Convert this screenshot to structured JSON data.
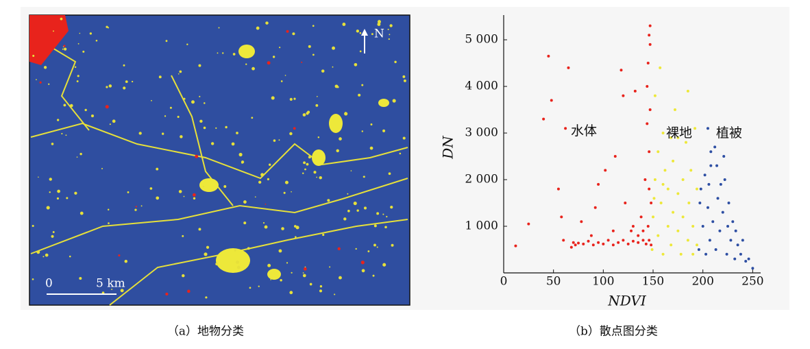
{
  "map": {
    "north": "N",
    "scale_start": "0",
    "scale_end": "5 km"
  },
  "captions": [
    "（a）地物分类",
    "（b）散点图分类"
  ],
  "chart_data": {
    "type": "scatter",
    "x_label": "NDVI",
    "y_label": "DN",
    "xlim": [
      0,
      258
    ],
    "ylim": [
      0,
      5530
    ],
    "xticks": [
      0,
      50,
      100,
      150,
      200,
      250
    ],
    "yticks": [
      {
        "value": 1000,
        "label": "1 000"
      },
      {
        "value": 2000,
        "label": "2 000"
      },
      {
        "value": 3000,
        "label": "3 000"
      },
      {
        "value": 4000,
        "label": "4 000"
      },
      {
        "value": 5000,
        "label": "5 000"
      }
    ],
    "series": [
      {
        "name": "水体",
        "color": "#e8231c",
        "x": [
          12,
          25,
          40,
          45,
          48,
          55,
          60,
          62,
          65,
          70,
          72,
          75,
          78,
          80,
          85,
          90,
          92,
          95,
          100,
          102,
          105,
          110,
          112,
          115,
          118,
          120,
          122,
          125,
          128,
          130,
          132,
          135,
          138,
          140,
          142,
          143,
          144,
          145,
          145,
          146,
          146,
          147,
          147,
          147,
          148,
          148,
          144,
          146,
          140,
          135,
          130,
          110,
          88,
          68,
          58,
          95,
          120,
          146
        ],
        "values": [
          580,
          1050,
          3300,
          4650,
          3700,
          1800,
          700,
          3100,
          4400,
          650,
          600,
          640,
          1100,
          620,
          680,
          600,
          1400,
          650,
          620,
          2200,
          700,
          600,
          2500,
          650,
          4350,
          700,
          1500,
          620,
          900,
          680,
          3900,
          650,
          1200,
          700,
          2000,
          620,
          3200,
          1000,
          4500,
          700,
          2600,
          3500,
          4900,
          5300,
          1500,
          600,
          4000,
          1800,
          900,
          800,
          1000,
          900,
          800,
          550,
          1200,
          1900,
          3800,
          5100
        ]
      },
      {
        "name": "裸地",
        "color": "#ede83a",
        "x": [
          149,
          150,
          152,
          152,
          155,
          155,
          158,
          160,
          160,
          162,
          165,
          165,
          168,
          170,
          170,
          172,
          175,
          175,
          178,
          180,
          180,
          183,
          185,
          186,
          188,
          190,
          190,
          192,
          194,
          194,
          185,
          160,
          157,
          175,
          151,
          168
        ],
        "values": [
          500,
          1200,
          2000,
          3800,
          800,
          2600,
          1500,
          400,
          3000,
          2200,
          1000,
          1800,
          600,
          2400,
          1300,
          3500,
          900,
          1700,
          400,
          2000,
          1200,
          2800,
          700,
          1500,
          2200,
          400,
          1000,
          3100,
          1800,
          600,
          3900,
          1900,
          4400,
          2900,
          1600,
          2900
        ]
      },
      {
        "name": "植被",
        "color": "#2e4fa3",
        "x": [
          196,
          197,
          198,
          200,
          202,
          203,
          205,
          207,
          208,
          210,
          212,
          213,
          215,
          217,
          220,
          222,
          224,
          225,
          228,
          230,
          232,
          235,
          238,
          240,
          243,
          246,
          250,
          218,
          206,
          226,
          214,
          221,
          233,
          205,
          208
        ],
        "values": [
          500,
          1500,
          1800,
          1000,
          2100,
          400,
          1400,
          700,
          2300,
          1100,
          2700,
          500,
          1600,
          900,
          1300,
          2000,
          400,
          1000,
          700,
          1100,
          300,
          600,
          400,
          700,
          250,
          300,
          100,
          1900,
          1900,
          1500,
          2300,
          2500,
          900,
          3100,
          2600
        ]
      }
    ]
  }
}
